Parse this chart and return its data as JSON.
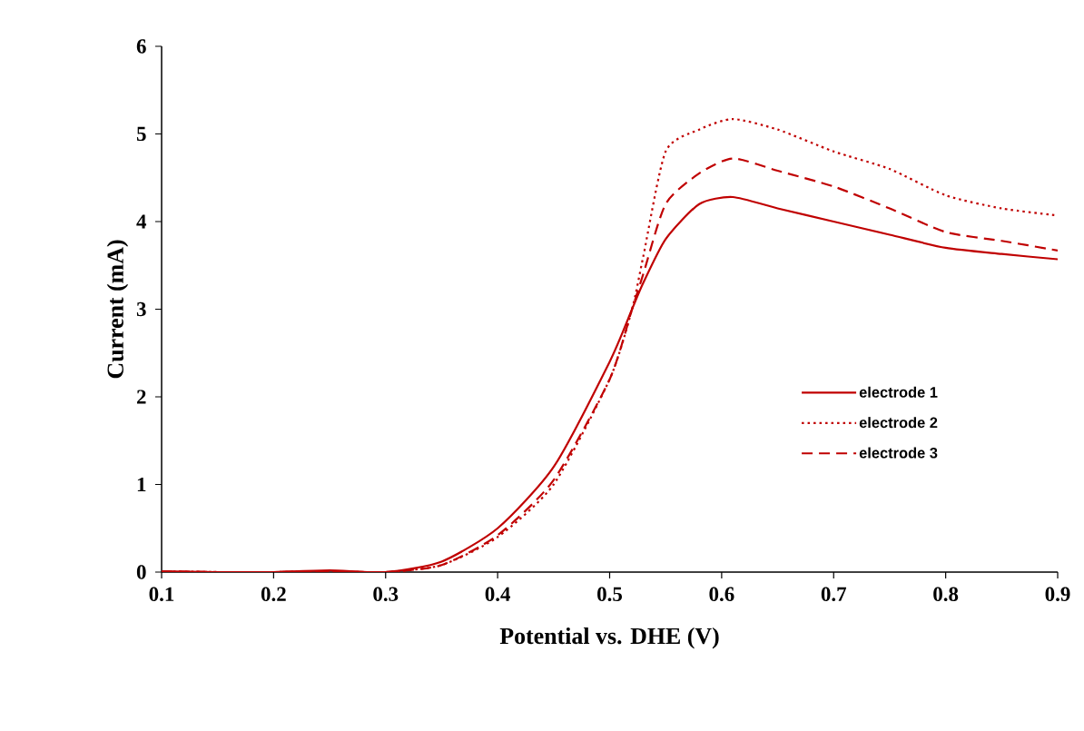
{
  "chart_data": {
    "type": "line",
    "xlabel": "Potential vs. DHE (V)",
    "ylabel": "Current (mA)",
    "xlim": [
      0.1,
      0.9
    ],
    "ylim": [
      0,
      6
    ],
    "xticks": [
      0.1,
      0.2,
      0.3,
      0.4,
      0.5,
      0.6,
      0.7,
      0.8,
      0.9
    ],
    "yticks": [
      0,
      1,
      2,
      3,
      4,
      5,
      6
    ],
    "grid": false,
    "legend": "bottom right",
    "marker": "none",
    "x": [
      0.1,
      0.15,
      0.2,
      0.25,
      0.3,
      0.35,
      0.4,
      0.45,
      0.5,
      0.52,
      0.53,
      0.55,
      0.58,
      0.61,
      0.65,
      0.7,
      0.75,
      0.8,
      0.85,
      0.9
    ],
    "series": [
      {
        "name": "electrode 1",
        "color": "#c00000",
        "line_style": "solid",
        "values": [
          0.01,
          0.0,
          0.0,
          0.02,
          0.0,
          0.12,
          0.5,
          1.2,
          2.4,
          3.0,
          3.3,
          3.8,
          4.2,
          4.28,
          4.15,
          4.0,
          3.85,
          3.7,
          3.63,
          3.57
        ]
      },
      {
        "name": "electrode 2",
        "color": "#c00000",
        "line_style": "dotted",
        "values": [
          0.01,
          0.0,
          0.0,
          0.01,
          0.0,
          0.08,
          0.4,
          1.0,
          2.2,
          3.0,
          3.6,
          4.8,
          5.05,
          5.17,
          5.05,
          4.8,
          4.6,
          4.3,
          4.15,
          4.07
        ]
      },
      {
        "name": "electrode 3",
        "color": "#c00000",
        "line_style": "dashed",
        "values": [
          0.01,
          0.0,
          0.0,
          0.01,
          0.0,
          0.08,
          0.42,
          1.05,
          2.2,
          3.0,
          3.4,
          4.2,
          4.55,
          4.72,
          4.58,
          4.4,
          4.15,
          3.88,
          3.78,
          3.67
        ]
      }
    ]
  }
}
